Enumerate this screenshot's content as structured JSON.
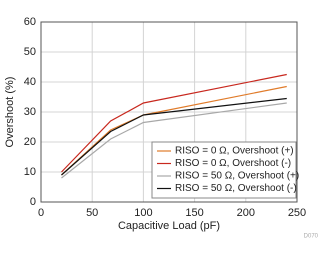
{
  "chart_data": {
    "type": "line",
    "x_label": "Capacitive Load (pF)",
    "y_label": "Overshoot (%)",
    "x": [
      20,
      68,
      100,
      240
    ],
    "series": [
      {
        "name": "RISO = 0 Ω, Overshoot (+)",
        "color": "#e07b2a",
        "values": [
          9,
          24,
          29,
          38.5
        ]
      },
      {
        "name": "RISO = 0 Ω, Overshoot (-)",
        "color": "#c8281e",
        "values": [
          10,
          27,
          33,
          42.5
        ]
      },
      {
        "name": "RISO = 50 Ω, Overshoot (+)",
        "color": "#a8a8a8",
        "values": [
          8,
          21,
          26.5,
          33
        ]
      },
      {
        "name": "RISO = 50 Ω, Overshoot (-)",
        "color": "#111111",
        "values": [
          9,
          23.5,
          29,
          34.5
        ]
      }
    ],
    "xlim": [
      0,
      250
    ],
    "xticks": [
      0,
      50,
      100,
      150,
      200,
      250
    ],
    "ylim": [
      0,
      60
    ],
    "yticks": [
      0,
      10,
      20,
      30,
      40,
      50,
      60
    ],
    "grid": true,
    "legend": "lower right",
    "footnote": "D070"
  }
}
